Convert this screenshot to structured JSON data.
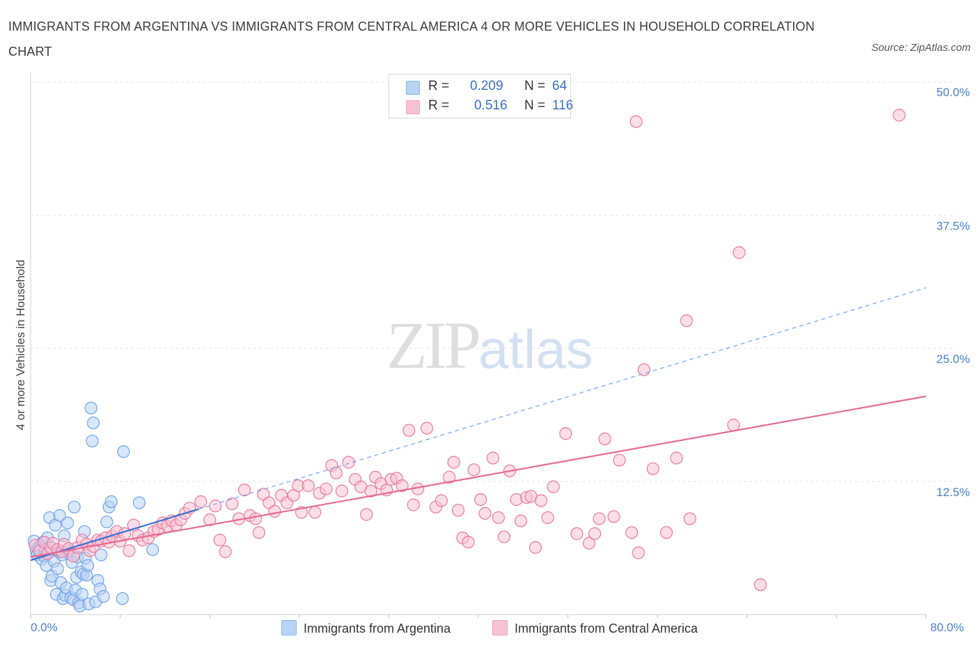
{
  "chart_data": {
    "type": "scatter",
    "title": "IMMIGRANTS FROM ARGENTINA VS IMMIGRANTS FROM CENTRAL AMERICA 4 OR MORE VEHICLES IN HOUSEHOLD CORRELATION CHART",
    "source": "Source: ZipAtlas.com",
    "xlabel": "",
    "ylabel": "4 or more Vehicles in Household",
    "xlim": [
      0,
      80
    ],
    "ylim": [
      0,
      50
    ],
    "x_tick_labels": [
      "0.0%",
      "80.0%"
    ],
    "y_tick_labels": [
      "12.5%",
      "25.0%",
      "37.5%",
      "50.0%"
    ],
    "y_ticks": [
      12.5,
      25.0,
      37.5,
      50.0
    ],
    "grid": true,
    "legend_position": "top-center",
    "watermark": {
      "zip": "ZIP",
      "atlas": "atlas"
    },
    "series": [
      {
        "name": "Immigrants from Argentina",
        "color": "#6fa3e8",
        "fill": "#b9d3f5",
        "R": "0.209",
        "N": "64",
        "trend": {
          "x": [
            0,
            15
          ],
          "y": [
            5.1,
            9.9
          ],
          "style": "solid",
          "extended": {
            "x": [
              15,
              80
            ],
            "y": [
              9.9,
              30.7
            ],
            "style": "dashed"
          }
        },
        "points": [
          [
            0.3,
            6.9
          ],
          [
            0.5,
            6.0
          ],
          [
            0.6,
            5.6
          ],
          [
            0.7,
            6.3
          ],
          [
            0.8,
            5.9
          ],
          [
            0.9,
            6.5
          ],
          [
            1.0,
            5.2
          ],
          [
            1.1,
            6.8
          ],
          [
            1.2,
            5.5
          ],
          [
            1.3,
            6.1
          ],
          [
            1.4,
            4.6
          ],
          [
            1.5,
            7.2
          ],
          [
            1.6,
            5.8
          ],
          [
            1.7,
            9.1
          ],
          [
            1.8,
            3.2
          ],
          [
            1.9,
            3.6
          ],
          [
            2.0,
            6.2
          ],
          [
            2.1,
            5.0
          ],
          [
            2.2,
            8.4
          ],
          [
            2.3,
            1.9
          ],
          [
            2.4,
            4.3
          ],
          [
            2.5,
            5.9
          ],
          [
            2.6,
            9.3
          ],
          [
            2.7,
            3.0
          ],
          [
            2.8,
            5.6
          ],
          [
            2.9,
            1.5
          ],
          [
            3.0,
            7.4
          ],
          [
            3.1,
            1.8
          ],
          [
            3.2,
            2.5
          ],
          [
            3.3,
            8.6
          ],
          [
            3.4,
            6.0
          ],
          [
            3.5,
            5.7
          ],
          [
            3.6,
            1.6
          ],
          [
            3.7,
            4.9
          ],
          [
            3.8,
            1.4
          ],
          [
            3.9,
            10.1
          ],
          [
            4.0,
            2.3
          ],
          [
            4.1,
            3.5
          ],
          [
            4.2,
            5.4
          ],
          [
            4.3,
            1.1
          ],
          [
            4.4,
            0.8
          ],
          [
            4.5,
            4.0
          ],
          [
            4.6,
            1.9
          ],
          [
            4.7,
            3.8
          ],
          [
            4.8,
            7.8
          ],
          [
            4.9,
            5.3
          ],
          [
            5.0,
            3.7
          ],
          [
            5.1,
            4.6
          ],
          [
            5.2,
            1.0
          ],
          [
            5.4,
            19.4
          ],
          [
            5.5,
            16.3
          ],
          [
            5.6,
            18.0
          ],
          [
            5.8,
            1.2
          ],
          [
            6.0,
            3.2
          ],
          [
            6.2,
            2.4
          ],
          [
            6.3,
            5.6
          ],
          [
            6.5,
            1.7
          ],
          [
            6.8,
            8.7
          ],
          [
            7.0,
            10.1
          ],
          [
            7.2,
            10.6
          ],
          [
            8.2,
            1.5
          ],
          [
            8.3,
            15.3
          ],
          [
            9.7,
            10.5
          ],
          [
            10.9,
            6.1
          ]
        ]
      },
      {
        "name": "Immigrants from Central America",
        "color": "#e8799f",
        "fill": "#f7c3d4",
        "R": "0.516",
        "N": "116",
        "trend": {
          "x": [
            0,
            80
          ],
          "y": [
            5.4,
            20.5
          ],
          "style": "solid"
        },
        "points": [
          [
            0.4,
            6.5
          ],
          [
            0.8,
            6.0
          ],
          [
            1.2,
            6.8
          ],
          [
            1.5,
            5.7
          ],
          [
            1.8,
            6.3
          ],
          [
            2.0,
            6.7
          ],
          [
            2.4,
            6.1
          ],
          [
            2.8,
            5.9
          ],
          [
            3.0,
            6.6
          ],
          [
            3.4,
            6.2
          ],
          [
            3.8,
            5.5
          ],
          [
            4.2,
            6.3
          ],
          [
            4.6,
            7.0
          ],
          [
            5.0,
            6.6
          ],
          [
            5.3,
            6.0
          ],
          [
            5.6,
            6.4
          ],
          [
            6.0,
            7.0
          ],
          [
            6.3,
            6.9
          ],
          [
            6.7,
            7.2
          ],
          [
            7.0,
            6.8
          ],
          [
            7.3,
            7.4
          ],
          [
            7.7,
            7.8
          ],
          [
            8.0,
            6.9
          ],
          [
            8.4,
            7.6
          ],
          [
            8.8,
            6.0
          ],
          [
            9.2,
            8.4
          ],
          [
            9.6,
            7.4
          ],
          [
            10.0,
            7.0
          ],
          [
            10.5,
            7.2
          ],
          [
            11.0,
            7.8
          ],
          [
            11.4,
            8.0
          ],
          [
            11.8,
            8.6
          ],
          [
            12.2,
            8.3
          ],
          [
            12.6,
            8.8
          ],
          [
            13.0,
            8.4
          ],
          [
            13.4,
            8.9
          ],
          [
            13.8,
            9.5
          ],
          [
            14.2,
            10.0
          ],
          [
            15.2,
            10.6
          ],
          [
            16.0,
            8.9
          ],
          [
            16.5,
            10.2
          ],
          [
            16.9,
            7.0
          ],
          [
            17.4,
            5.9
          ],
          [
            18.0,
            10.4
          ],
          [
            18.6,
            9.0
          ],
          [
            19.1,
            11.7
          ],
          [
            19.6,
            9.3
          ],
          [
            20.1,
            9.0
          ],
          [
            20.4,
            7.7
          ],
          [
            20.8,
            11.3
          ],
          [
            21.3,
            10.5
          ],
          [
            21.8,
            9.7
          ],
          [
            22.4,
            11.2
          ],
          [
            22.9,
            10.5
          ],
          [
            23.5,
            11.2
          ],
          [
            23.9,
            12.1
          ],
          [
            24.2,
            9.6
          ],
          [
            24.8,
            12.1
          ],
          [
            25.4,
            9.6
          ],
          [
            25.8,
            11.4
          ],
          [
            26.4,
            11.8
          ],
          [
            26.9,
            14.0
          ],
          [
            27.3,
            13.3
          ],
          [
            27.8,
            11.6
          ],
          [
            28.4,
            14.3
          ],
          [
            29.0,
            12.7
          ],
          [
            29.5,
            12.0
          ],
          [
            30.0,
            9.4
          ],
          [
            30.4,
            11.6
          ],
          [
            30.8,
            12.9
          ],
          [
            31.3,
            12.3
          ],
          [
            31.8,
            11.7
          ],
          [
            32.2,
            12.7
          ],
          [
            32.7,
            12.8
          ],
          [
            33.2,
            12.1
          ],
          [
            33.8,
            17.3
          ],
          [
            34.2,
            10.3
          ],
          [
            34.6,
            11.8
          ],
          [
            35.4,
            17.5
          ],
          [
            36.2,
            10.1
          ],
          [
            36.7,
            10.7
          ],
          [
            37.4,
            12.9
          ],
          [
            37.8,
            14.3
          ],
          [
            38.2,
            9.8
          ],
          [
            38.6,
            7.2
          ],
          [
            39.1,
            6.8
          ],
          [
            39.6,
            13.6
          ],
          [
            40.2,
            10.8
          ],
          [
            40.6,
            9.5
          ],
          [
            41.3,
            14.7
          ],
          [
            41.8,
            9.1
          ],
          [
            42.3,
            7.3
          ],
          [
            42.8,
            13.5
          ],
          [
            43.4,
            10.8
          ],
          [
            43.8,
            8.8
          ],
          [
            44.3,
            11.0
          ],
          [
            44.7,
            11.1
          ],
          [
            45.1,
            6.3
          ],
          [
            45.6,
            10.7
          ],
          [
            46.2,
            9.1
          ],
          [
            46.7,
            12.0
          ],
          [
            47.8,
            17.0
          ],
          [
            48.8,
            7.6
          ],
          [
            49.9,
            6.7
          ],
          [
            50.4,
            7.6
          ],
          [
            50.8,
            9.0
          ],
          [
            51.3,
            16.5
          ],
          [
            52.1,
            9.2
          ],
          [
            52.6,
            14.5
          ],
          [
            53.7,
            7.7
          ],
          [
            54.3,
            5.8
          ],
          [
            54.8,
            23.0
          ],
          [
            55.6,
            13.7
          ],
          [
            56.8,
            7.7
          ],
          [
            57.7,
            14.7
          ],
          [
            58.6,
            27.6
          ],
          [
            58.9,
            9.0
          ],
          [
            62.8,
            17.8
          ],
          [
            63.3,
            34.0
          ],
          [
            65.2,
            2.8
          ],
          [
            54.1,
            46.3
          ],
          [
            77.6,
            46.9
          ]
        ]
      }
    ]
  }
}
